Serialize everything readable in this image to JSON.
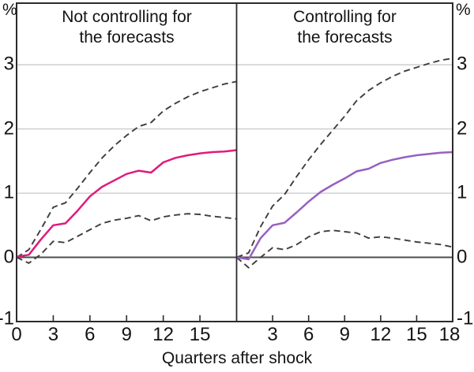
{
  "chart_data": {
    "type": "line",
    "x": [
      0,
      1,
      2,
      3,
      4,
      5,
      6,
      7,
      8,
      9,
      10,
      11,
      12,
      13,
      14,
      15,
      16,
      17,
      18
    ],
    "xlabel": "Quarters after shock",
    "y_unit": "%",
    "ylim": [
      -1,
      4
    ],
    "y_ticks": [
      3,
      2,
      1,
      0,
      -1
    ],
    "grid_values": [
      1,
      2,
      3
    ],
    "zero_line": true,
    "legend": "none",
    "panels": [
      {
        "title": "Not controlling for\nthe forecasts",
        "x_tick_labels": [
          0,
          3,
          6,
          9,
          12,
          15
        ],
        "series": [
          {
            "name": "response-estimate",
            "style": "solid",
            "color": "#E01B7D",
            "values": [
              0.01,
              0.04,
              0.28,
              0.5,
              0.53,
              0.73,
              0.95,
              1.1,
              1.2,
              1.3,
              1.35,
              1.32,
              1.48,
              1.55,
              1.59,
              1.62,
              1.64,
              1.65,
              1.67
            ]
          },
          {
            "name": "upper-confidence-band",
            "style": "dashed",
            "color": "#3d3d3d",
            "values": [
              0.0,
              0.12,
              0.44,
              0.78,
              0.85,
              1.08,
              1.32,
              1.55,
              1.74,
              1.9,
              2.04,
              2.1,
              2.28,
              2.4,
              2.5,
              2.58,
              2.64,
              2.7,
              2.74
            ]
          },
          {
            "name": "lower-confidence-band",
            "style": "dashed",
            "color": "#3d3d3d",
            "values": [
              0.0,
              -0.09,
              0.05,
              0.25,
              0.23,
              0.33,
              0.43,
              0.53,
              0.58,
              0.61,
              0.65,
              0.57,
              0.63,
              0.66,
              0.68,
              0.67,
              0.64,
              0.62,
              0.6
            ]
          }
        ]
      },
      {
        "title": "Controlling for\nthe forecasts",
        "x_tick_labels": [
          3,
          6,
          9,
          12,
          15,
          18
        ],
        "series": [
          {
            "name": "response-estimate",
            "style": "solid",
            "color": "#9760C2",
            "values": [
              0.0,
              -0.03,
              0.3,
              0.5,
              0.54,
              0.7,
              0.87,
              1.02,
              1.13,
              1.23,
              1.34,
              1.38,
              1.47,
              1.52,
              1.56,
              1.59,
              1.61,
              1.63,
              1.64
            ]
          },
          {
            "name": "upper-confidence-band",
            "style": "dashed",
            "color": "#3d3d3d",
            "values": [
              0.0,
              0.07,
              0.48,
              0.8,
              0.98,
              1.26,
              1.52,
              1.76,
              1.98,
              2.2,
              2.44,
              2.6,
              2.72,
              2.82,
              2.9,
              2.96,
              3.02,
              3.07,
              3.1
            ]
          },
          {
            "name": "lower-confidence-band",
            "style": "dashed",
            "color": "#3d3d3d",
            "values": [
              0.0,
              -0.16,
              0.0,
              0.15,
              0.12,
              0.2,
              0.32,
              0.4,
              0.42,
              0.4,
              0.38,
              0.3,
              0.32,
              0.3,
              0.27,
              0.24,
              0.22,
              0.2,
              0.16
            ]
          }
        ]
      }
    ]
  }
}
